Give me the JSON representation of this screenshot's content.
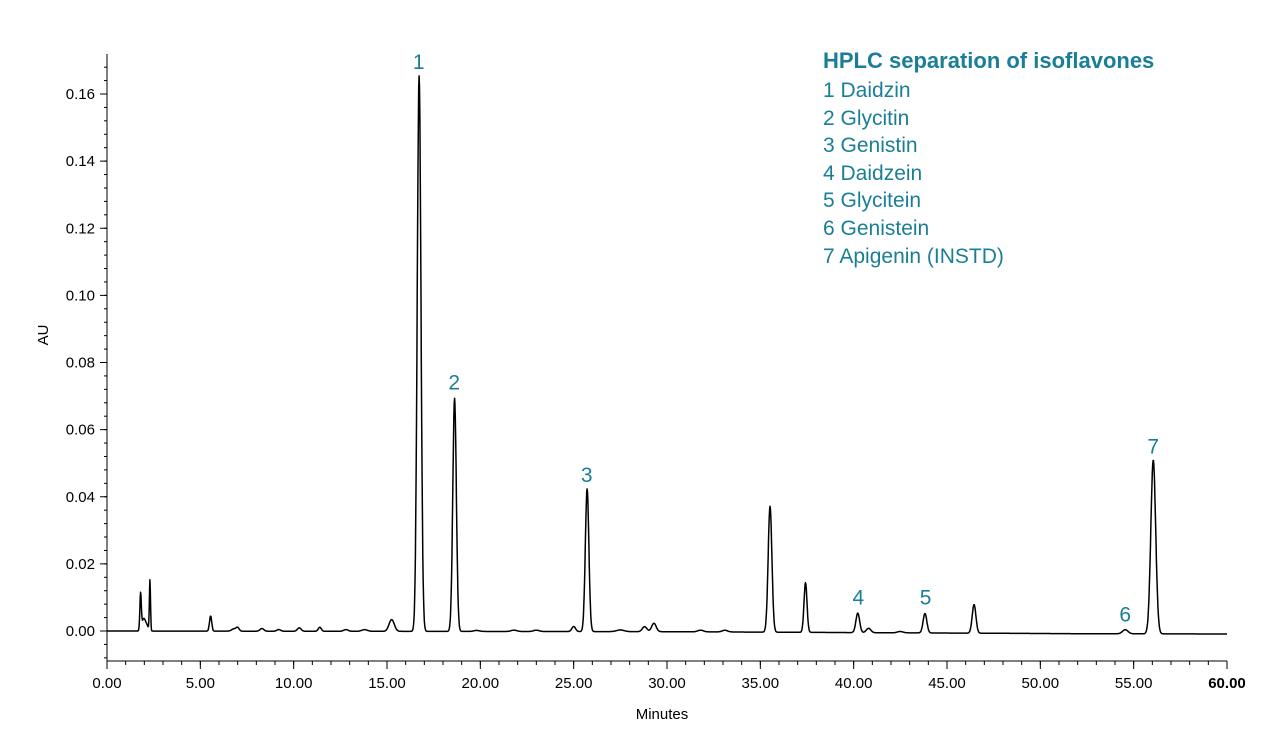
{
  "chart_data": {
    "type": "line",
    "title": "HPLC separation of isoflavones",
    "xlabel": "Minutes",
    "ylabel": "AU",
    "xlim": [
      0,
      60
    ],
    "ylim": [
      -0.009,
      0.175
    ],
    "x_ticks": [
      {
        "value": 0,
        "label": "0.00"
      },
      {
        "value": 5,
        "label": "5.00"
      },
      {
        "value": 10,
        "label": "10.00"
      },
      {
        "value": 15,
        "label": "15.00"
      },
      {
        "value": 20,
        "label": "20.00"
      },
      {
        "value": 25,
        "label": "25.00"
      },
      {
        "value": 30,
        "label": "30.00"
      },
      {
        "value": 35,
        "label": "35.00"
      },
      {
        "value": 40,
        "label": "40.00"
      },
      {
        "value": 45,
        "label": "45.00"
      },
      {
        "value": 50,
        "label": "50.00"
      },
      {
        "value": 55,
        "label": "55.00"
      },
      {
        "value": 60,
        "label": "60.00",
        "bold": true
      }
    ],
    "y_ticks": [
      {
        "value": 0,
        "label": "0.00"
      },
      {
        "value": 0.02,
        "label": "0.02"
      },
      {
        "value": 0.04,
        "label": "0.04"
      },
      {
        "value": 0.06,
        "label": "0.06"
      },
      {
        "value": 0.08,
        "label": "0.08"
      },
      {
        "value": 0.1,
        "label": "0.10"
      },
      {
        "value": 0.12,
        "label": "0.12"
      },
      {
        "value": 0.14,
        "label": "0.14"
      },
      {
        "value": 0.16,
        "label": "0.16"
      }
    ],
    "legend": [
      {
        "number": "1",
        "text": "1 Daidzin"
      },
      {
        "number": "2",
        "text": "2 Glycitin"
      },
      {
        "number": "3",
        "text": "3 Genistin"
      },
      {
        "number": "4",
        "text": "4 Daidzein"
      },
      {
        "number": "5",
        "text": "5 Glycitein"
      },
      {
        "number": "6",
        "text": "6 Genistein"
      },
      {
        "number": "7",
        "text": "7 Apigenin (INSTD)"
      }
    ],
    "labeled_peaks": [
      {
        "label": "1",
        "x": 16.7,
        "y": 0.165
      },
      {
        "label": "2",
        "x": 18.6,
        "y": 0.0695
      },
      {
        "label": "3",
        "x": 25.7,
        "y": 0.042
      },
      {
        "label": "4",
        "x": 40.25,
        "y": 0.0055
      },
      {
        "label": "5",
        "x": 43.85,
        "y": 0.0055
      },
      {
        "label": "6",
        "x": 54.55,
        "y": 0.0005
      },
      {
        "label": "7",
        "x": 56.05,
        "y": 0.0505
      }
    ],
    "series": [
      {
        "name": "chromatogram",
        "color": "#000000",
        "x_end": 60,
        "baseline": [
          [
            0,
            0
          ],
          [
            30,
            -0.0002
          ],
          [
            52,
            -0.0008
          ],
          [
            60,
            -0.0009
          ]
        ],
        "peaks": [
          {
            "x": 1.8,
            "h": 0.011,
            "w": 0.04
          },
          {
            "x": 1.95,
            "h": 0.003,
            "w": 0.08
          },
          {
            "x": 2.1,
            "h": 0.002,
            "w": 0.1
          },
          {
            "x": 2.3,
            "h": 0.015,
            "w": 0.03
          },
          {
            "x": 5.55,
            "h": 0.0045,
            "w": 0.06
          },
          {
            "x": 6.8,
            "h": 0.0007,
            "w": 0.12
          },
          {
            "x": 7.0,
            "h": 0.001,
            "w": 0.08
          },
          {
            "x": 8.3,
            "h": 0.0008,
            "w": 0.1
          },
          {
            "x": 9.2,
            "h": 0.0005,
            "w": 0.1
          },
          {
            "x": 10.3,
            "h": 0.001,
            "w": 0.1
          },
          {
            "x": 11.4,
            "h": 0.0012,
            "w": 0.08
          },
          {
            "x": 12.8,
            "h": 0.0005,
            "w": 0.12
          },
          {
            "x": 13.8,
            "h": 0.0005,
            "w": 0.15
          },
          {
            "x": 15.25,
            "h": 0.0035,
            "w": 0.14
          },
          {
            "x": 16.72,
            "h": 0.1655,
            "w": 0.1
          },
          {
            "x": 18.62,
            "h": 0.0695,
            "w": 0.095
          },
          {
            "x": 19.8,
            "h": 0.0003,
            "w": 0.15
          },
          {
            "x": 21.8,
            "h": 0.0004,
            "w": 0.15
          },
          {
            "x": 23.0,
            "h": 0.0004,
            "w": 0.15
          },
          {
            "x": 25.0,
            "h": 0.0015,
            "w": 0.1
          },
          {
            "x": 25.72,
            "h": 0.0425,
            "w": 0.095
          },
          {
            "x": 27.5,
            "h": 0.0005,
            "w": 0.2
          },
          {
            "x": 28.8,
            "h": 0.0015,
            "w": 0.12
          },
          {
            "x": 29.3,
            "h": 0.0025,
            "w": 0.12
          },
          {
            "x": 31.8,
            "h": 0.0005,
            "w": 0.15
          },
          {
            "x": 33.1,
            "h": 0.0005,
            "w": 0.15
          },
          {
            "x": 35.52,
            "h": 0.0375,
            "w": 0.1
          },
          {
            "x": 37.42,
            "h": 0.0148,
            "w": 0.08
          },
          {
            "x": 40.22,
            "h": 0.0058,
            "w": 0.1
          },
          {
            "x": 40.8,
            "h": 0.0013,
            "w": 0.12
          },
          {
            "x": 42.5,
            "h": 0.0004,
            "w": 0.15
          },
          {
            "x": 43.82,
            "h": 0.0058,
            "w": 0.1
          },
          {
            "x": 46.45,
            "h": 0.0085,
            "w": 0.1
          },
          {
            "x": 54.55,
            "h": 0.0012,
            "w": 0.15
          },
          {
            "x": 56.05,
            "h": 0.0518,
            "w": 0.13
          }
        ]
      }
    ],
    "grid": false
  }
}
